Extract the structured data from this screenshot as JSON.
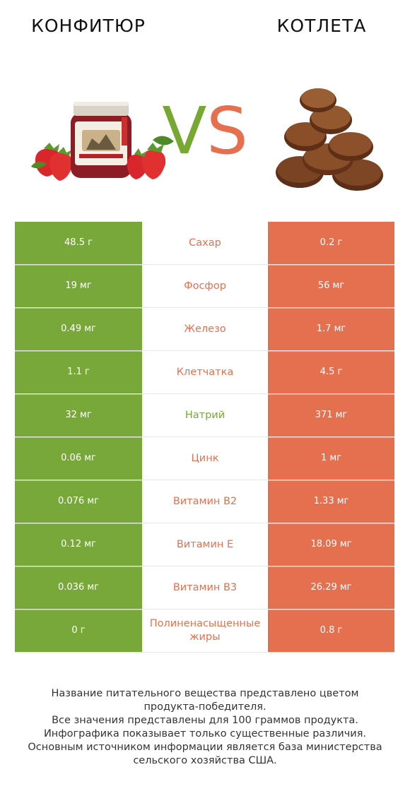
{
  "left_product": {
    "name": "КОНФИТЮР",
    "image": "jar-of-jam-with-strawberries"
  },
  "right_product": {
    "name": "КОТЛЕТА",
    "image": "stack-of-fried-cutlets"
  },
  "vs": {
    "v": "V",
    "s": "S"
  },
  "colors": {
    "left_winner": "#79a83a",
    "right_winner": "#e5704f"
  },
  "rows": [
    {
      "nutrient": "Сахар",
      "left": "48.5 г",
      "right": "0.2 г",
      "winner": "right"
    },
    {
      "nutrient": "Фосфор",
      "left": "19 мг",
      "right": "56 мг",
      "winner": "right"
    },
    {
      "nutrient": "Железо",
      "left": "0.49 мг",
      "right": "1.7 мг",
      "winner": "right"
    },
    {
      "nutrient": "Клетчатка",
      "left": "1.1 г",
      "right": "4.5 г",
      "winner": "right"
    },
    {
      "nutrient": "Натрий",
      "left": "32 мг",
      "right": "371 мг",
      "winner": "left"
    },
    {
      "nutrient": "Цинк",
      "left": "0.06 мг",
      "right": "1 мг",
      "winner": "right"
    },
    {
      "nutrient": "Витамин B2",
      "left": "0.076 мг",
      "right": "1.33 мг",
      "winner": "right"
    },
    {
      "nutrient": "Витамин E",
      "left": "0.12 мг",
      "right": "18.09 мг",
      "winner": "right"
    },
    {
      "nutrient": "Витамин B3",
      "left": "0.036 мг",
      "right": "26.29 мг",
      "winner": "right"
    },
    {
      "nutrient": "Полиненасыщенные жиры",
      "left": "0 г",
      "right": "0.8 г",
      "winner": "right"
    }
  ],
  "footer": {
    "line1": "Название питательного вещества представлено цветом",
    "line2": "продукта-победителя.",
    "line3": "Все значения представлены для 100 граммов продукта.",
    "line4": "Инфографика показывает только существенные различия.",
    "line5": "Основным источником информации является база министерства",
    "line6": "сельского хозяйства США."
  }
}
